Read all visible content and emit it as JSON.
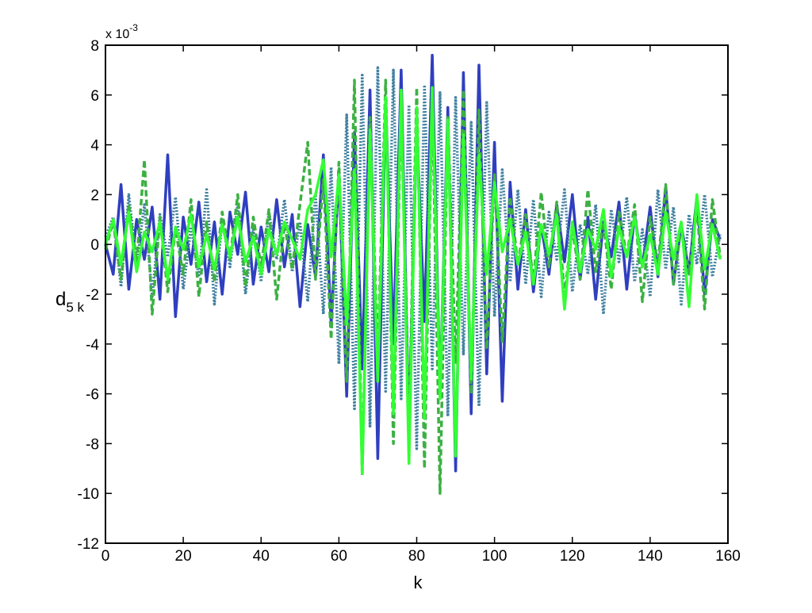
{
  "chart_data": {
    "type": "line",
    "xlabel": "k",
    "ylabel": {
      "text": "d",
      "subscript": "5 k"
    },
    "y_multiplier": {
      "text": "x 10",
      "superscript": "-3"
    },
    "xlim": [
      0,
      160
    ],
    "xticks": [
      0,
      20,
      40,
      60,
      80,
      100,
      120,
      140,
      160
    ],
    "ylim": [
      -12,
      8
    ],
    "yticks": [
      -12,
      -10,
      -8,
      -6,
      -4,
      -2,
      0,
      2,
      4,
      6,
      8
    ],
    "grid": false,
    "x": [
      0,
      2,
      4,
      6,
      8,
      10,
      12,
      14,
      16,
      18,
      20,
      22,
      24,
      26,
      28,
      30,
      32,
      34,
      36,
      38,
      40,
      42,
      44,
      46,
      48,
      50,
      52,
      54,
      56,
      58,
      60,
      62,
      64,
      66,
      68,
      70,
      72,
      74,
      76,
      78,
      80,
      82,
      84,
      86,
      88,
      90,
      92,
      94,
      96,
      98,
      100,
      102,
      104,
      106,
      108,
      110,
      112,
      114,
      116,
      118,
      120,
      122,
      124,
      126,
      128,
      130,
      132,
      134,
      136,
      138,
      140,
      142,
      144,
      146,
      148,
      150,
      152,
      154,
      156,
      158
    ],
    "series": [
      {
        "color": "#2f3fbf",
        "dash": "solid",
        "values": [
          0,
          -1.2,
          2.4,
          -1.8,
          1.0,
          -0.6,
          1.5,
          -2.2,
          3.6,
          -2.9,
          1.1,
          -0.8,
          1.7,
          -1.5,
          0.9,
          -2.0,
          1.3,
          -0.4,
          2.1,
          -1.6,
          0.7,
          -1.1,
          1.8,
          -0.9,
          1.2,
          -2.5,
          0.8,
          -1.3,
          3.6,
          -3.2,
          2.9,
          -6.1,
          4.5,
          -5.0,
          6.2,
          -8.6,
          5.8,
          -4.0,
          7.0,
          -7.5,
          4.8,
          -3.1,
          7.6,
          -6.0,
          5.5,
          -9.1,
          6.9,
          -6.8,
          7.2,
          -5.2,
          4.1,
          -6.3,
          2.5,
          -1.8,
          1.4,
          -1.9,
          0.8,
          -1.2,
          1.6,
          -0.7,
          2.0,
          -1.4,
          1.1,
          -2.2,
          0.9,
          -0.5,
          1.7,
          -1.8,
          1.2,
          -0.9,
          1.5,
          -1.3,
          2.3,
          -1.6,
          0.8,
          -1.1,
          1.9,
          -2.0,
          1.0,
          0.2
        ]
      },
      {
        "color": "#3f7fa0",
        "dash": "dotted",
        "values": [
          0.3,
          1.1,
          -1.7,
          2.0,
          -0.8,
          1.6,
          -2.1,
          1.2,
          -0.5,
          1.9,
          -1.8,
          0.7,
          -1.3,
          2.2,
          -2.4,
          1.0,
          -0.9,
          1.6,
          -2.0,
          0.6,
          -1.5,
          1.3,
          -0.6,
          1.8,
          -1.1,
          0.9,
          -2.3,
          2.0,
          -2.8,
          3.1,
          -4.8,
          5.2,
          -6.6,
          6.8,
          -7.3,
          7.1,
          -5.9,
          7.0,
          -6.2,
          5.6,
          -8.2,
          6.4,
          -5.0,
          6.1,
          -6.9,
          5.9,
          -4.4,
          4.9,
          -6.5,
          5.7,
          -2.9,
          3.0,
          -1.5,
          2.2,
          -1.6,
          1.8,
          -2.1,
          1.3,
          -0.6,
          2.2,
          -1.9,
          0.8,
          -1.2,
          1.6,
          -2.8,
          1.4,
          -0.7,
          1.9,
          -1.5,
          0.6,
          -2.1,
          2.2,
          -1.0,
          1.5,
          -2.4,
          1.2,
          -0.8,
          2.0,
          -1.3,
          0.4
        ]
      },
      {
        "color": "#3cb043",
        "dash": "dashed",
        "values": [
          -0.2,
          0.9,
          -1.4,
          1.6,
          -0.7,
          3.4,
          -2.8,
          1.1,
          -1.9,
          0.6,
          -1.2,
          1.8,
          -2.1,
          0.9,
          -1.5,
          1.3,
          -0.6,
          2.0,
          -1.7,
          1.1,
          -0.9,
          1.4,
          -2.2,
          0.8,
          -1.0,
          1.6,
          4.1,
          -1.4,
          2.6,
          -3.8,
          3.3,
          -5.5,
          6.6,
          -9.3,
          5.1,
          -4.6,
          6.6,
          -8.0,
          5.7,
          -7.3,
          6.3,
          -9.0,
          6.0,
          -10.0,
          5.2,
          -4.8,
          6.2,
          -6.0,
          5.4,
          -4.2,
          2.8,
          -3.9,
          1.9,
          -0.8,
          1.2,
          -1.5,
          2.1,
          -0.9,
          1.7,
          -2.0,
          0.6,
          -1.4,
          2.2,
          -1.1,
          0.9,
          -1.8,
          1.3,
          -0.5,
          1.6,
          -2.3,
          1.1,
          -0.8,
          2.4,
          -1.6,
          0.7,
          -1.2,
          1.5,
          -2.6,
          1.8,
          -0.5
        ]
      },
      {
        "color": "#33ff33",
        "dash": "solid",
        "values": [
          0,
          1.0,
          -0.8,
          1.3,
          -1.1,
          0.5,
          -0.3,
          0.9,
          -1.4,
          0.7,
          -0.2,
          1.2,
          -0.9,
          0.4,
          -1.0,
          0.8,
          -0.5,
          1.1,
          -0.7,
          0.3,
          -1.2,
          0.6,
          -0.4,
          0.9,
          0.2,
          -0.6,
          1.4,
          2.0,
          3.4,
          -0.5,
          2.8,
          -3.2,
          3.0,
          -9.2,
          4.6,
          -5.5,
          5.9,
          -6.8,
          6.2,
          -8.8,
          5.5,
          -7.0,
          6.3,
          -6.2,
          5.0,
          -8.5,
          4.4,
          -5.4,
          3.6,
          -1.2,
          2.5,
          -0.3,
          1.0,
          -0.8,
          0.5,
          -1.6,
          0.8,
          -0.4,
          1.2,
          -2.6,
          0.9,
          -1.1,
          0.6,
          -0.2,
          1.4,
          -1.3,
          0.7,
          -0.5,
          1.1,
          -0.9,
          0.4,
          -1.2,
          1.3,
          -0.6,
          0.9,
          -2.5,
          2.0,
          -1.0,
          0.8,
          -0.6
        ]
      }
    ]
  }
}
